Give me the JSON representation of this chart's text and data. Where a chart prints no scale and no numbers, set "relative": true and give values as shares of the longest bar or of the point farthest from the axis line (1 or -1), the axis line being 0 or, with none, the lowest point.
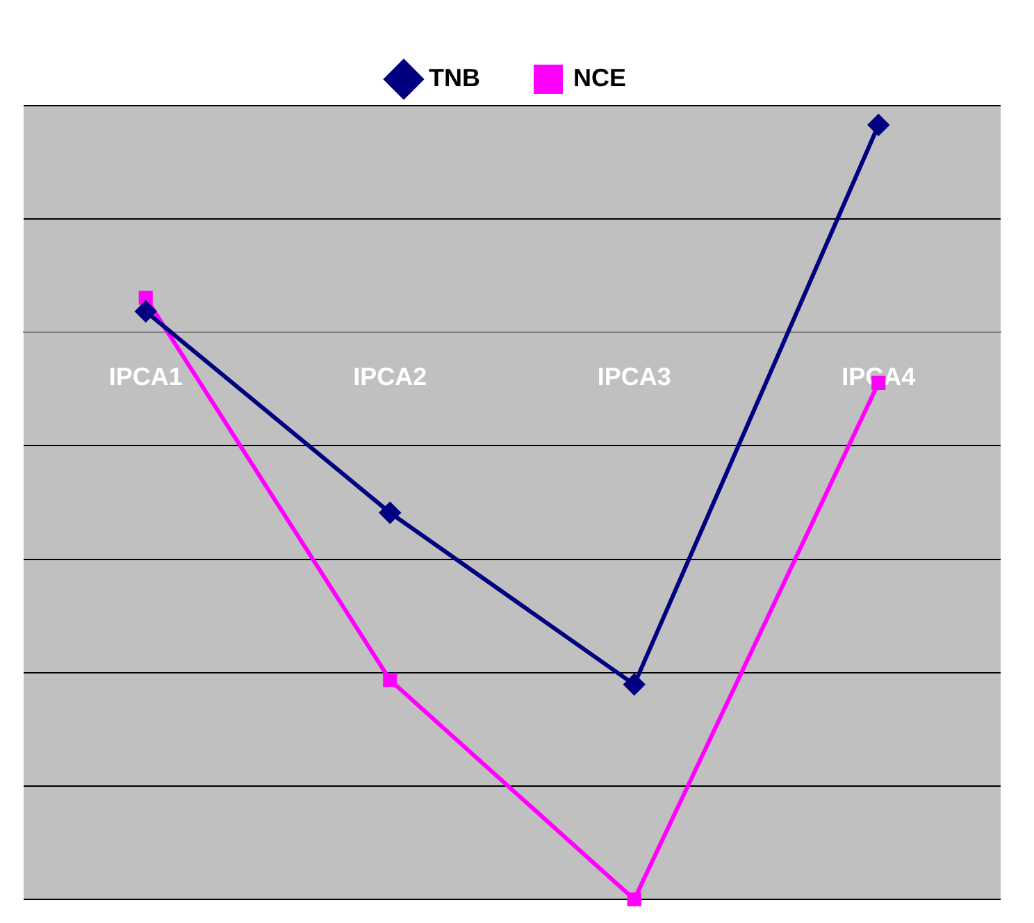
{
  "chart_data": {
    "type": "line",
    "relative": true,
    "categories": [
      "IPCA1",
      "IPCA2",
      "IPCA3",
      "IPCA4"
    ],
    "series": [
      {
        "name": "TNB",
        "color": "#000080",
        "marker": "diamond",
        "values": [
          0.037,
          -0.318,
          -0.621,
          0.366
        ]
      },
      {
        "name": "NCE",
        "color": "#ff00ff",
        "marker": "square",
        "values": [
          0.061,
          -0.613,
          -1,
          -0.089
        ]
      }
    ],
    "grid": "y",
    "legend": "top"
  }
}
